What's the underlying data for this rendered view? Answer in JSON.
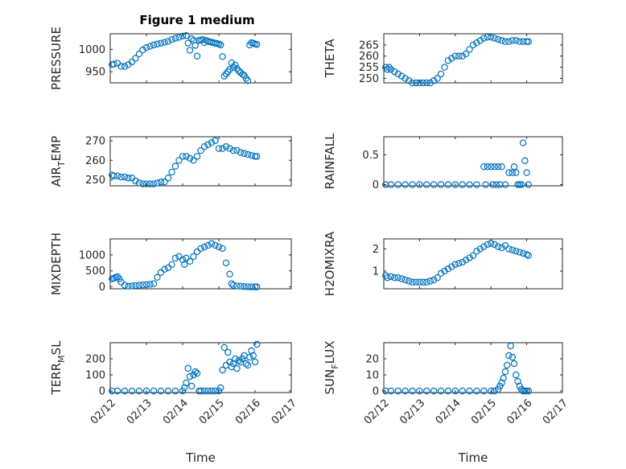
{
  "figure_title": "Figure 1 medium",
  "colors": {
    "marker": "#0072BD",
    "axis": "#262626",
    "background": "#ffffff"
  },
  "chart_data": [
    {
      "type": "scatter",
      "title": "Figure 1 medium",
      "xlabel": "",
      "ylabel": "PRESSURE",
      "ylim": [
        925,
        1035
      ],
      "yticks": [
        950,
        1000
      ],
      "xlim": [
        0,
        5
      ],
      "xtick_labels": [
        "02/12",
        "02/13",
        "02/14",
        "02/15",
        "02/16",
        "02/17"
      ],
      "show_xtick_labels": false,
      "grid": "on",
      "x": [
        0.05,
        0.1,
        0.2,
        0.3,
        0.4,
        0.5,
        0.6,
        0.7,
        0.8,
        0.9,
        1.0,
        1.1,
        1.2,
        1.3,
        1.4,
        1.5,
        1.6,
        1.7,
        1.8,
        1.9,
        2.0,
        2.1,
        2.15,
        2.2,
        2.25,
        2.3,
        2.35,
        2.4,
        2.45,
        2.5,
        2.55,
        2.6,
        2.65,
        2.7,
        2.75,
        2.8,
        2.85,
        2.9,
        2.95,
        3.0,
        3.05,
        3.1,
        3.15,
        3.2,
        3.25,
        3.3,
        3.35,
        3.4,
        3.45,
        3.5,
        3.55,
        3.6,
        3.65,
        3.7,
        3.75,
        3.8,
        3.85,
        3.9,
        3.95,
        4.0,
        4.05
      ],
      "y": [
        966,
        967,
        969,
        962,
        962,
        966,
        972,
        980,
        990,
        999,
        1004,
        1007,
        1010,
        1012,
        1014,
        1016,
        1018,
        1022,
        1025,
        1027,
        1030,
        1031,
        1014,
        998,
        1024,
        1020,
        1009,
        985,
        1020,
        1021,
        1022,
        1015,
        1020,
        1018,
        1017,
        1016,
        1015,
        1014,
        1013,
        1012,
        1010,
        984,
        940,
        945,
        950,
        955,
        970,
        960,
        965,
        957,
        952,
        948,
        944,
        942,
        935,
        930,
        1010,
        1015,
        1014,
        1012,
        1011
      ],
      "y_clean": true
    },
    {
      "type": "scatter",
      "title": "",
      "xlabel": "",
      "ylabel": "THETA",
      "ylim": [
        248,
        270
      ],
      "yticks": [
        250,
        255,
        260,
        265
      ],
      "xlim": [
        0,
        5
      ],
      "xtick_labels": [
        "02/12",
        "02/13",
        "02/14",
        "02/15",
        "02/16",
        "02/17"
      ],
      "show_xtick_labels": false,
      "grid": "on",
      "x": [
        0.05,
        0.1,
        0.15,
        0.2,
        0.3,
        0.4,
        0.5,
        0.6,
        0.7,
        0.8,
        0.9,
        1.0,
        1.1,
        1.2,
        1.3,
        1.4,
        1.5,
        1.6,
        1.7,
        1.8,
        1.9,
        2.0,
        2.1,
        2.2,
        2.3,
        2.4,
        2.5,
        2.6,
        2.7,
        2.8,
        2.9,
        3.0,
        3.1,
        3.2,
        3.3,
        3.4,
        3.5,
        3.6,
        3.7,
        3.8,
        3.9,
        4.0,
        4.05
      ],
      "y": [
        255,
        254,
        255,
        254,
        253,
        252,
        251,
        250,
        249,
        248,
        248,
        248,
        248,
        248,
        248,
        249,
        250,
        252,
        255,
        258,
        259,
        260,
        260,
        260,
        261,
        263,
        265,
        266,
        267,
        268,
        268.5,
        268.5,
        268,
        267.5,
        267,
        266.5,
        266.5,
        267,
        267,
        266.5,
        266.5,
        266.5,
        266.5
      ]
    },
    {
      "type": "scatter",
      "title": "",
      "xlabel": "",
      "ylabel": "AIR_TEMP",
      "ylim": [
        247,
        272
      ],
      "yticks": [
        250,
        260,
        270
      ],
      "xlim": [
        0,
        5
      ],
      "xtick_labels": [
        "02/12",
        "02/13",
        "02/14",
        "02/15",
        "02/16",
        "02/17"
      ],
      "show_xtick_labels": false,
      "grid": "on",
      "x": [
        0.05,
        0.1,
        0.2,
        0.3,
        0.4,
        0.5,
        0.6,
        0.7,
        0.8,
        0.9,
        1.0,
        1.1,
        1.2,
        1.3,
        1.4,
        1.5,
        1.6,
        1.7,
        1.8,
        1.9,
        2.0,
        2.1,
        2.2,
        2.3,
        2.4,
        2.5,
        2.6,
        2.7,
        2.8,
        2.9,
        3.0,
        3.1,
        3.2,
        3.3,
        3.4,
        3.5,
        3.6,
        3.7,
        3.8,
        3.9,
        4.0,
        4.05
      ],
      "y": [
        252.5,
        252,
        252,
        251.5,
        251.5,
        251,
        251,
        249.5,
        248.5,
        248,
        248,
        248,
        248,
        248.5,
        249,
        249,
        251,
        254,
        257,
        260,
        262,
        262,
        261,
        260,
        262,
        265,
        267,
        268,
        269,
        270,
        266,
        266,
        267,
        266,
        265,
        265,
        264,
        263.5,
        263,
        262.5,
        262,
        262
      ]
    },
    {
      "type": "scatter",
      "title": "",
      "xlabel": "",
      "ylabel": "RAINFALL",
      "ylim": [
        -0.02,
        0.8
      ],
      "yticks": [
        0,
        0.5
      ],
      "xlim": [
        0,
        5
      ],
      "xtick_labels": [
        "02/12",
        "02/13",
        "02/14",
        "02/15",
        "02/16",
        "02/17"
      ],
      "show_xtick_labels": false,
      "grid": "on",
      "x": [
        0.05,
        0.2,
        0.4,
        0.6,
        0.8,
        1.0,
        1.2,
        1.4,
        1.6,
        1.8,
        2.0,
        2.2,
        2.4,
        2.6,
        2.8,
        2.85,
        2.9,
        3.0,
        3.05,
        3.1,
        3.15,
        3.2,
        3.25,
        3.3,
        3.4,
        3.5,
        3.6,
        3.65,
        3.7,
        3.75,
        3.8,
        3.85,
        3.9,
        3.95,
        4.0,
        4.05
      ],
      "y": [
        0,
        0,
        0,
        0,
        0,
        0,
        0,
        0,
        0,
        0,
        0,
        0,
        0,
        0,
        0.3,
        0,
        0.3,
        0.3,
        0,
        0.3,
        0,
        0.3,
        0,
        0.3,
        0,
        0.2,
        0.2,
        0.3,
        0.2,
        0,
        0,
        0,
        0.7,
        0.4,
        0.2,
        0
      ]
    },
    {
      "type": "scatter",
      "title": "",
      "xlabel": "",
      "ylabel": "MIXDEPTH",
      "ylim": [
        -60,
        1500
      ],
      "yticks": [
        0,
        500,
        1000
      ],
      "xlim": [
        0,
        5
      ],
      "xtick_labels": [
        "02/12",
        "02/13",
        "02/14",
        "02/15",
        "02/16",
        "02/17"
      ],
      "show_xtick_labels": false,
      "grid": "on",
      "x": [
        0.05,
        0.1,
        0.15,
        0.2,
        0.25,
        0.3,
        0.4,
        0.5,
        0.6,
        0.7,
        0.8,
        0.9,
        1.0,
        1.1,
        1.2,
        1.3,
        1.4,
        1.5,
        1.6,
        1.7,
        1.8,
        1.9,
        2.0,
        2.05,
        2.1,
        2.2,
        2.3,
        2.4,
        2.5,
        2.6,
        2.7,
        2.8,
        2.9,
        3.0,
        3.1,
        3.2,
        3.3,
        3.35,
        3.4,
        3.5,
        3.6,
        3.7,
        3.8,
        3.9,
        4.0,
        4.05
      ],
      "y": [
        250,
        270,
        300,
        320,
        250,
        150,
        50,
        20,
        30,
        40,
        50,
        60,
        70,
        80,
        100,
        300,
        450,
        550,
        600,
        700,
        900,
        950,
        850,
        700,
        900,
        800,
        950,
        1100,
        1200,
        1250,
        1300,
        1350,
        1300,
        1250,
        1200,
        750,
        400,
        100,
        50,
        30,
        20,
        10,
        5,
        0,
        0,
        0
      ]
    },
    {
      "type": "scatter",
      "title": "",
      "xlabel": "",
      "ylabel": "H2OMIXRA",
      "ylim": [
        0.2,
        2.45
      ],
      "yticks": [
        1,
        2
      ],
      "xlim": [
        0,
        5
      ],
      "xtick_labels": [
        "02/12",
        "02/13",
        "02/14",
        "02/15",
        "02/16",
        "02/17"
      ],
      "show_xtick_labels": false,
      "grid": "on",
      "x": [
        0.05,
        0.1,
        0.2,
        0.3,
        0.4,
        0.5,
        0.6,
        0.7,
        0.8,
        0.9,
        1.0,
        1.1,
        1.2,
        1.3,
        1.4,
        1.5,
        1.6,
        1.7,
        1.8,
        1.9,
        2.0,
        2.1,
        2.2,
        2.3,
        2.4,
        2.5,
        2.6,
        2.7,
        2.8,
        2.9,
        3.0,
        3.1,
        3.2,
        3.3,
        3.4,
        3.5,
        3.6,
        3.7,
        3.8,
        3.9,
        4.0,
        4.05
      ],
      "y": [
        0.8,
        0.7,
        0.75,
        0.7,
        0.7,
        0.65,
        0.6,
        0.55,
        0.5,
        0.5,
        0.5,
        0.5,
        0.5,
        0.55,
        0.6,
        0.7,
        0.9,
        1.0,
        1.1,
        1.2,
        1.3,
        1.35,
        1.4,
        1.5,
        1.6,
        1.7,
        1.9,
        2.0,
        2.1,
        2.2,
        2.25,
        2.2,
        2.1,
        2.05,
        2.15,
        2.0,
        1.95,
        1.9,
        1.85,
        1.8,
        1.75,
        1.7
      ]
    },
    {
      "type": "scatter",
      "title": "",
      "xlabel": "Time",
      "ylabel": "TERR_MSL",
      "ylim": [
        -10,
        300
      ],
      "yticks": [
        0,
        100,
        200
      ],
      "xlim": [
        0,
        5
      ],
      "xtick_labels": [
        "02/12",
        "02/13",
        "02/14",
        "02/15",
        "02/16",
        "02/17"
      ],
      "show_xtick_labels": true,
      "grid": "on",
      "x": [
        0.05,
        0.2,
        0.4,
        0.6,
        0.8,
        1.0,
        1.2,
        1.4,
        1.6,
        1.8,
        2.0,
        2.05,
        2.1,
        2.15,
        2.2,
        2.25,
        2.3,
        2.35,
        2.4,
        2.45,
        2.5,
        2.6,
        2.7,
        2.8,
        2.9,
        3.0,
        3.05,
        3.1,
        3.15,
        3.2,
        3.25,
        3.3,
        3.35,
        3.4,
        3.45,
        3.5,
        3.55,
        3.6,
        3.65,
        3.7,
        3.75,
        3.8,
        3.85,
        3.9,
        3.95,
        4.0,
        4.05
      ],
      "y": [
        0,
        0,
        0,
        0,
        0,
        0,
        0,
        0,
        0,
        0,
        0,
        20,
        50,
        140,
        90,
        30,
        100,
        120,
        110,
        0,
        0,
        0,
        0,
        0,
        0,
        0,
        20,
        130,
        270,
        160,
        240,
        180,
        150,
        170,
        200,
        140,
        190,
        180,
        200,
        220,
        170,
        160,
        210,
        250,
        220,
        180,
        290
      ]
    },
    {
      "type": "scatter",
      "title": "",
      "xlabel": "Time",
      "ylabel": "SUN_FLUX",
      "ylim": [
        -1,
        30
      ],
      "yticks": [
        0,
        10,
        20
      ],
      "xlim": [
        0,
        5
      ],
      "xtick_labels": [
        "02/12",
        "02/13",
        "02/14",
        "02/15",
        "02/16",
        "02/17"
      ],
      "show_xtick_labels": true,
      "grid": "on",
      "x": [
        0.05,
        0.2,
        0.4,
        0.6,
        0.8,
        1.0,
        1.2,
        1.4,
        1.6,
        1.8,
        2.0,
        2.2,
        2.4,
        2.6,
        2.8,
        3.0,
        3.1,
        3.2,
        3.25,
        3.3,
        3.35,
        3.4,
        3.45,
        3.5,
        3.55,
        3.6,
        3.65,
        3.7,
        3.75,
        3.8,
        3.85,
        3.9,
        3.95,
        4.0,
        4.05
      ],
      "y": [
        0,
        0,
        0,
        0,
        0,
        0,
        0,
        0,
        0,
        0,
        0,
        0,
        0,
        0,
        0,
        0,
        0,
        1,
        3,
        5,
        8,
        12,
        16,
        22,
        28,
        21,
        17,
        10,
        6,
        3,
        1,
        0,
        0,
        0,
        0
      ]
    }
  ]
}
